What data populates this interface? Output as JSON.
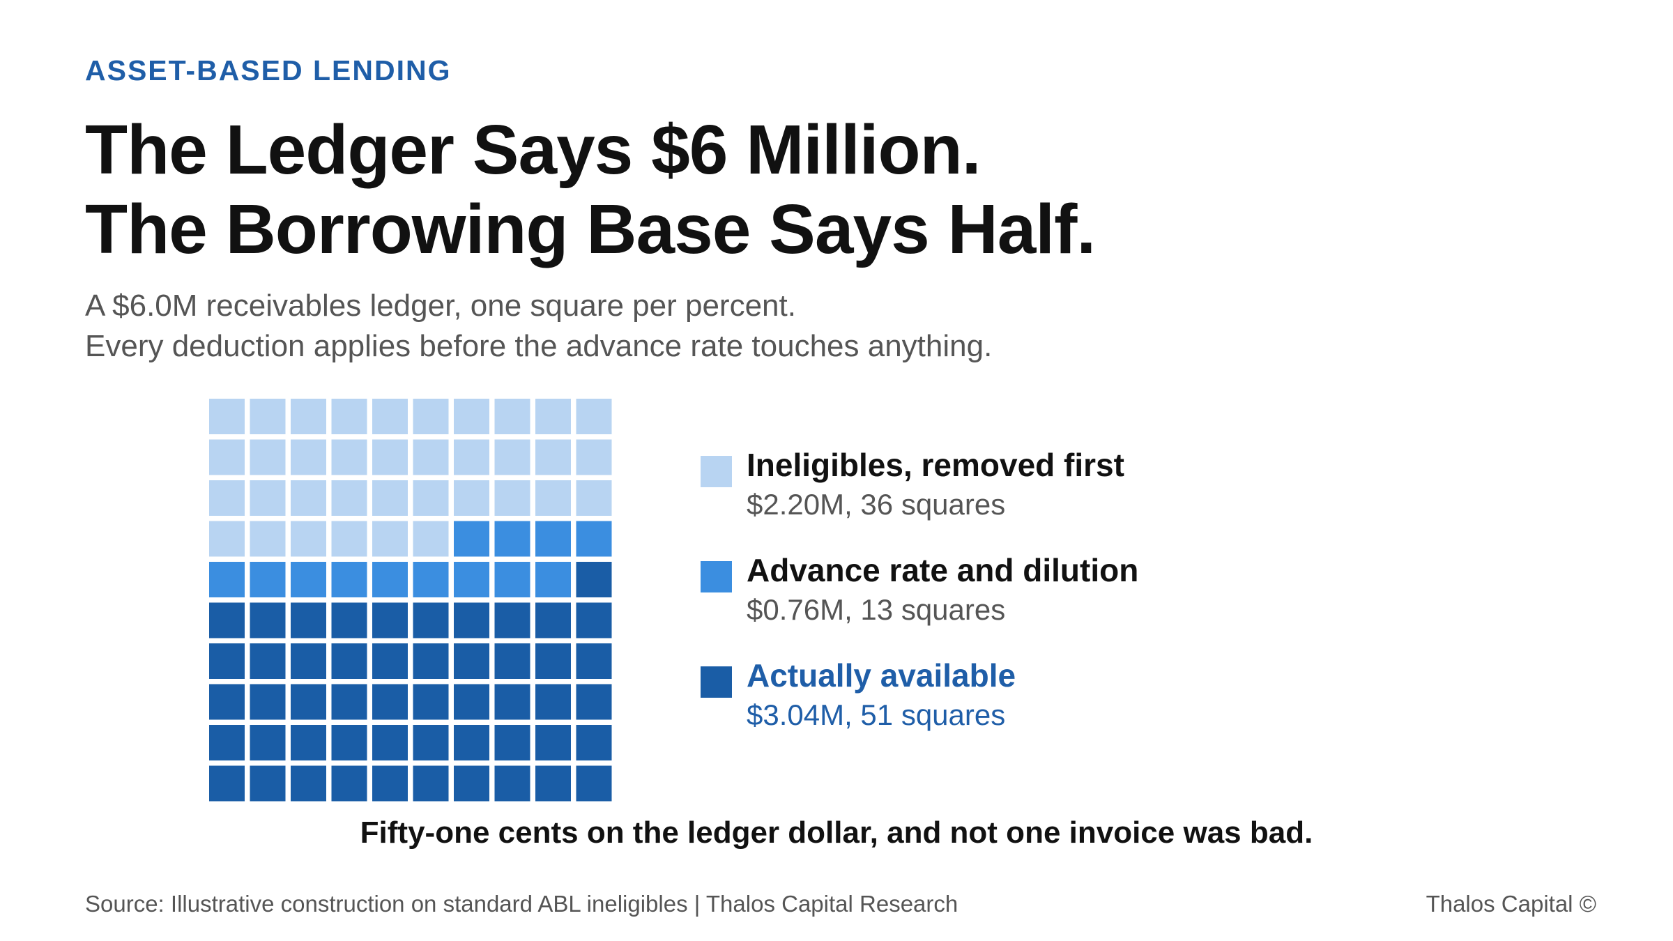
{
  "header": {
    "kicker": "ASSET-BASED LENDING",
    "headline_line1": "The Ledger Says $6 Million.",
    "headline_line2": "The Borrowing Base Says Half.",
    "subtitle_line1": "A $6.0M receivables ledger, one square per percent.",
    "subtitle_line2": "Every deduction applies before the advance rate touches anything."
  },
  "chart_data": {
    "type": "waffle",
    "grid": {
      "rows": 10,
      "cols": 10
    },
    "total": "$6.0M",
    "series": [
      {
        "name": "Ineligibles, removed first",
        "value_label": "$2.20M, 36 squares",
        "squares": 36,
        "color": "#b8d4f2"
      },
      {
        "name": "Advance rate and dilution",
        "value_label": "$0.76M, 13 squares",
        "squares": 13,
        "color": "#3b8ee0"
      },
      {
        "name": "Actually available",
        "value_label": "$3.04M, 51 squares",
        "squares": 51,
        "color": "#1a5da6"
      }
    ],
    "legend_position": "right"
  },
  "takeaway": "Fifty-one cents on the ledger dollar, and not one invoice was bad.",
  "footer": {
    "source": "Source: Illustrative construction on standard ABL ineligibles | Thalos Capital Research",
    "brand": "Thalos Capital ©"
  }
}
